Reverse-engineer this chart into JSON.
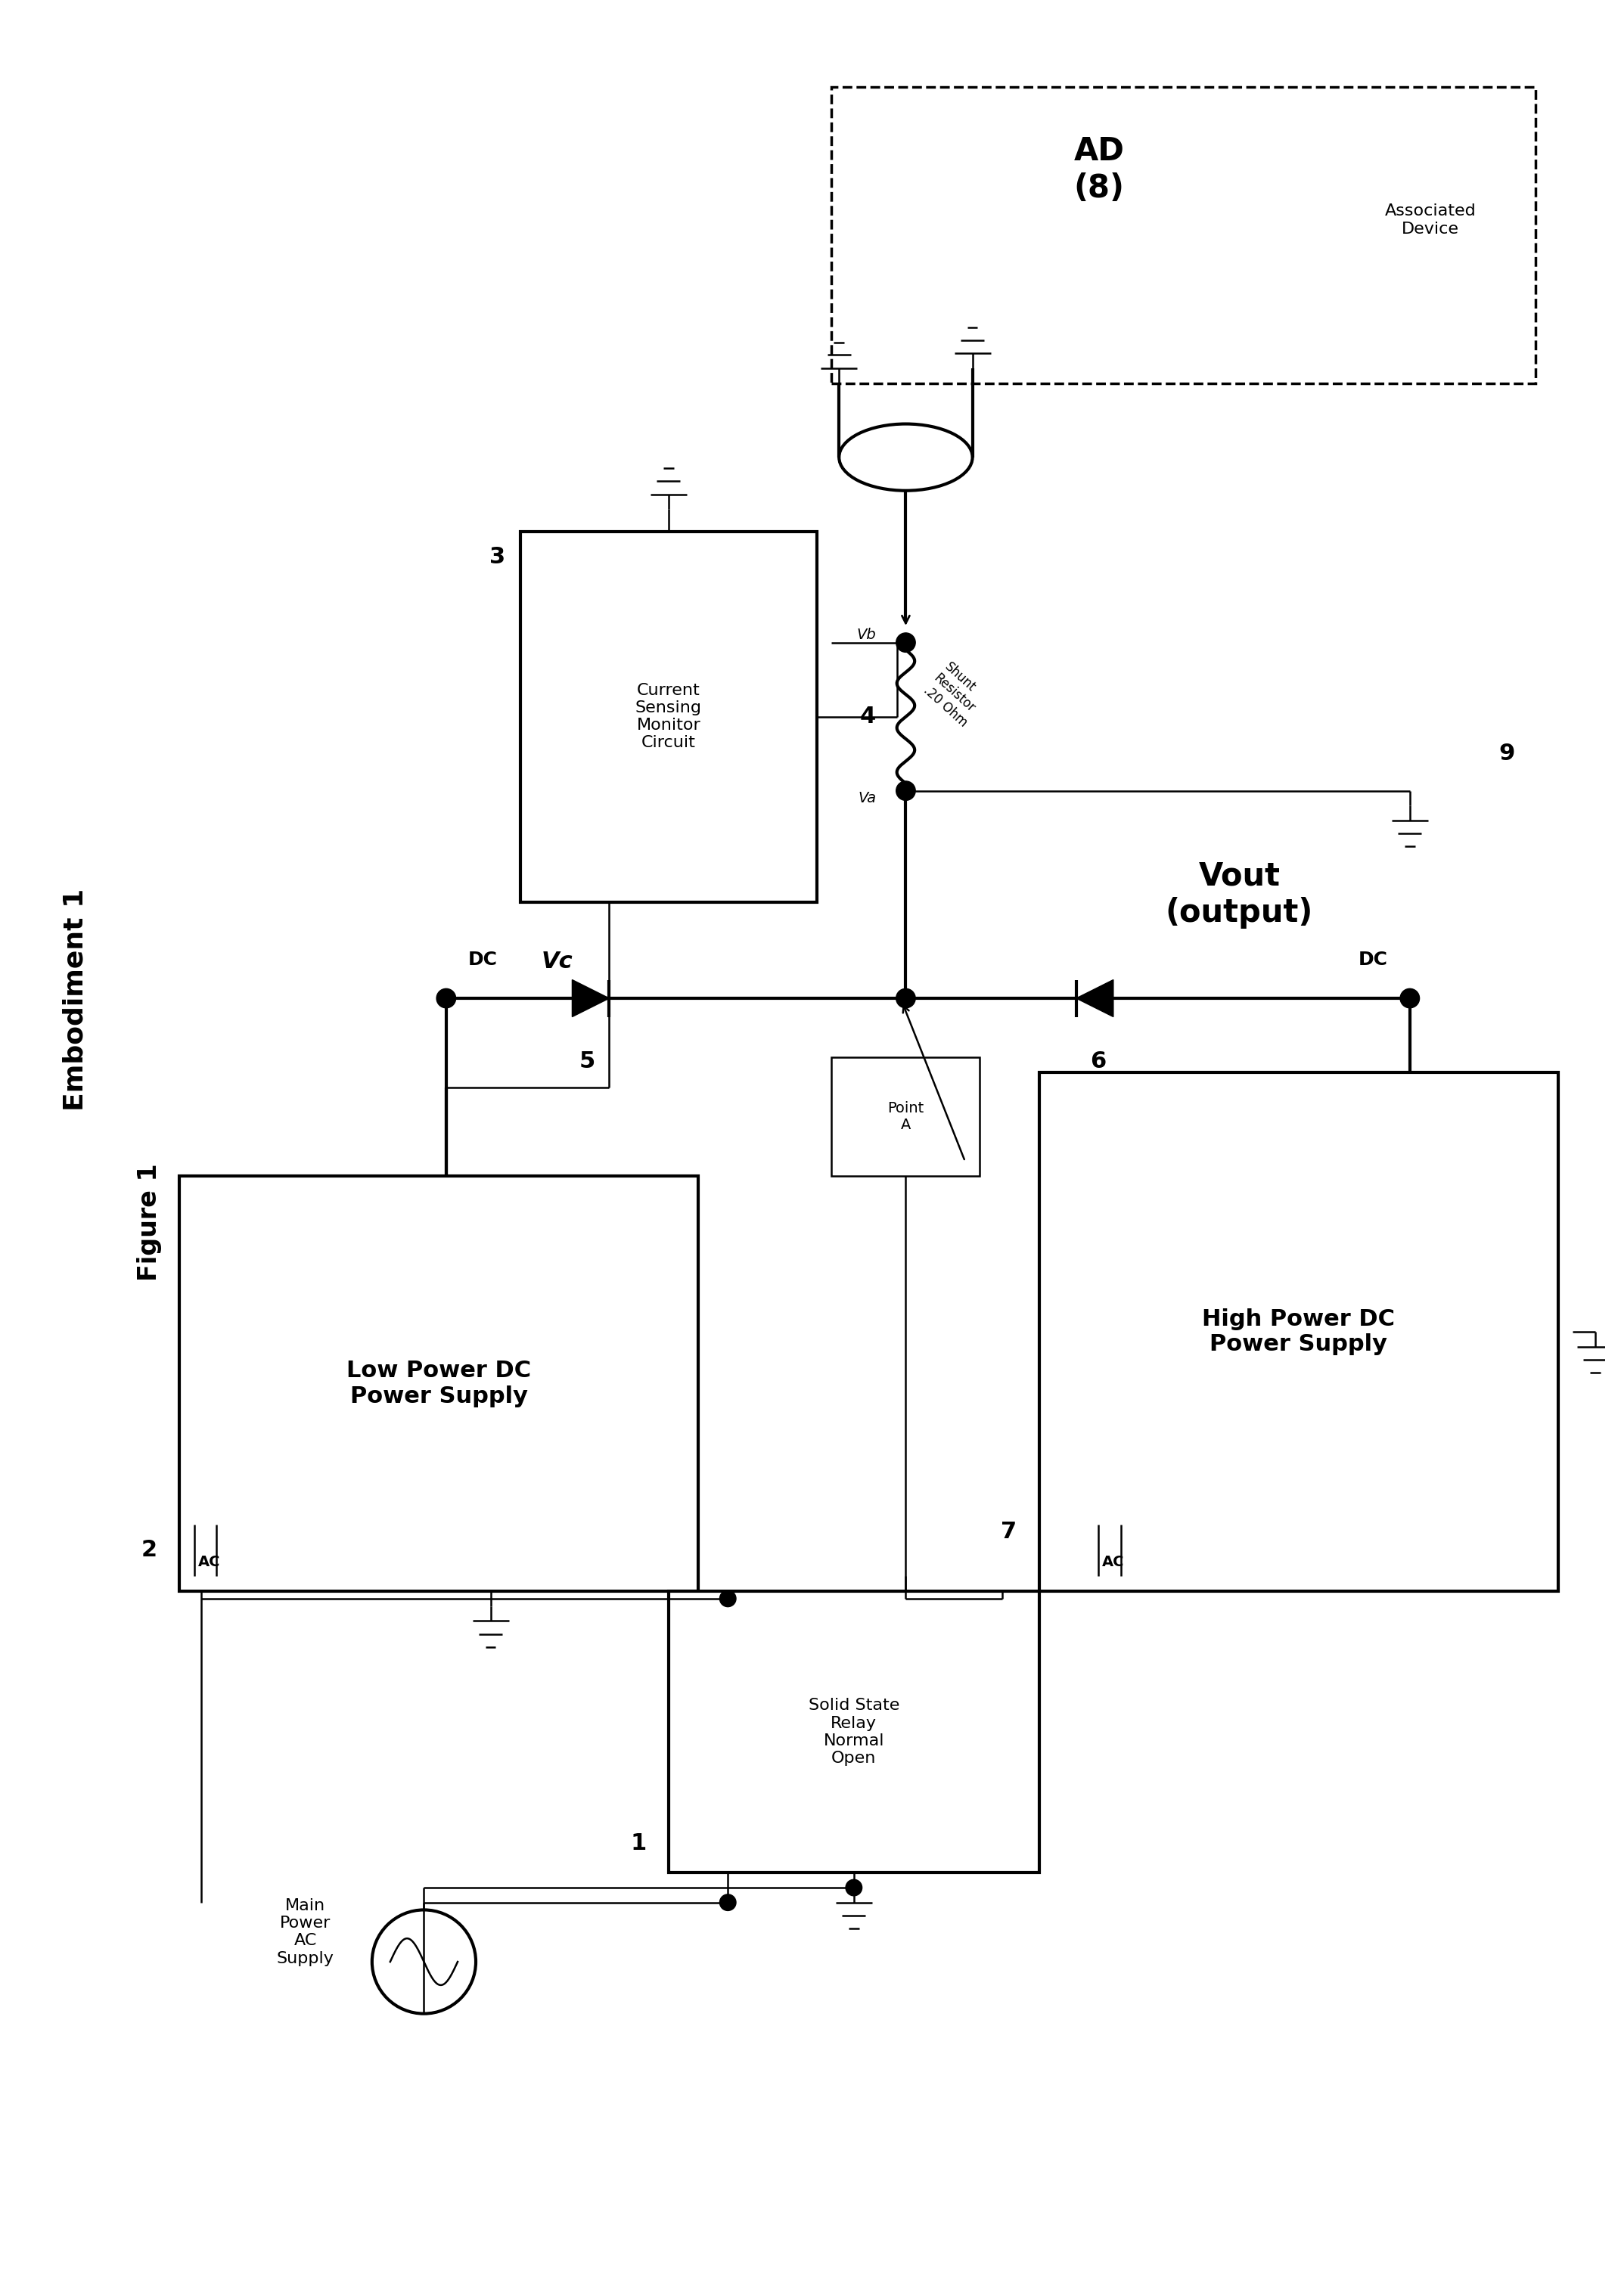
{
  "background_color": "#ffffff",
  "line_color": "#000000",
  "fig_width": 21.43,
  "fig_height": 30.36,
  "labels": {
    "figure": "Figure 1",
    "embodiment": "Embodiment 1",
    "ad": "AD\n(8)",
    "associated_device": "Associated\nDevice",
    "current_sensing": "Current\nSensing\nMonitor\nCircuit",
    "low_power": "Low Power DC\nPower Supply",
    "high_power": "High Power DC\nPower Supply",
    "solid_state": "Solid State\nRelay\nNormal\nOpen",
    "main_power": "Main\nPower\nAC\nSupply",
    "point_a": "Point\nA",
    "vout": "Vout\n(output)",
    "vc": "Vc",
    "va": "Va",
    "vb": "Vb",
    "dc1": "DC",
    "dc2": "DC",
    "ac1": "AC",
    "ac2": "AC",
    "num1": "1",
    "num2": "2",
    "num3": "3",
    "num4": "4",
    "num5": "5",
    "num6": "6",
    "num7": "7",
    "num9": "9",
    "shunt": "Shunt\nResistor\n.20 Ohm"
  }
}
